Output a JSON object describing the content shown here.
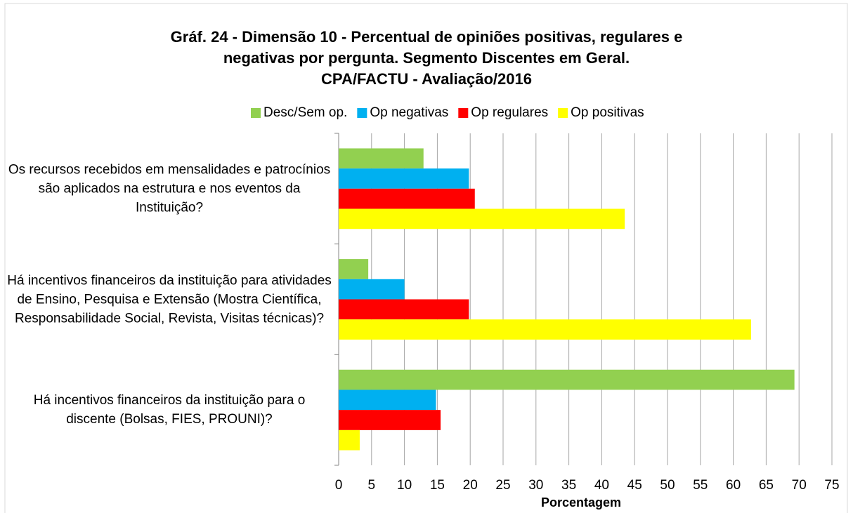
{
  "chart_data": {
    "type": "barh",
    "title": [
      "Gráf. 24 - Dimensão 10 - Percentual de opiniões positivas, regulares e",
      "negativas por pergunta. Segmento Discentes em Geral.",
      "CPA/FACTU - Avaliação/2016"
    ],
    "categories": [
      "Os recursos recebidos em mensalidades e patrocínios são aplicados na estrutura e nos eventos da Instituição?",
      "Há incentivos financeiros da instituição para atividades de Ensino, Pesquisa e Extensão (Mostra Científica, Responsabilidade Social, Revista, Visitas técnicas)?",
      "Há incentivos financeiros da instituição para o discente (Bolsas, FIES, PROUNI)?"
    ],
    "series": [
      {
        "name": "Desc/Sem op.",
        "color": "#92d050",
        "values": [
          12.9,
          4.5,
          69.3
        ]
      },
      {
        "name": "Op negativas",
        "color": "#00b0f0",
        "values": [
          19.8,
          10.0,
          14.8
        ]
      },
      {
        "name": "Op regulares",
        "color": "#ff0000",
        "values": [
          20.7,
          19.8,
          15.5
        ]
      },
      {
        "name": "Op positivas",
        "color": "#ffff00",
        "values": [
          43.5,
          62.7,
          3.2
        ]
      }
    ],
    "xlabel": "Porcentagem",
    "xlim": [
      0,
      75
    ],
    "xticks": [
      0,
      5,
      10,
      15,
      20,
      25,
      30,
      35,
      40,
      45,
      50,
      55,
      60,
      65,
      70,
      75
    ],
    "grid": true,
    "legend": "top"
  }
}
